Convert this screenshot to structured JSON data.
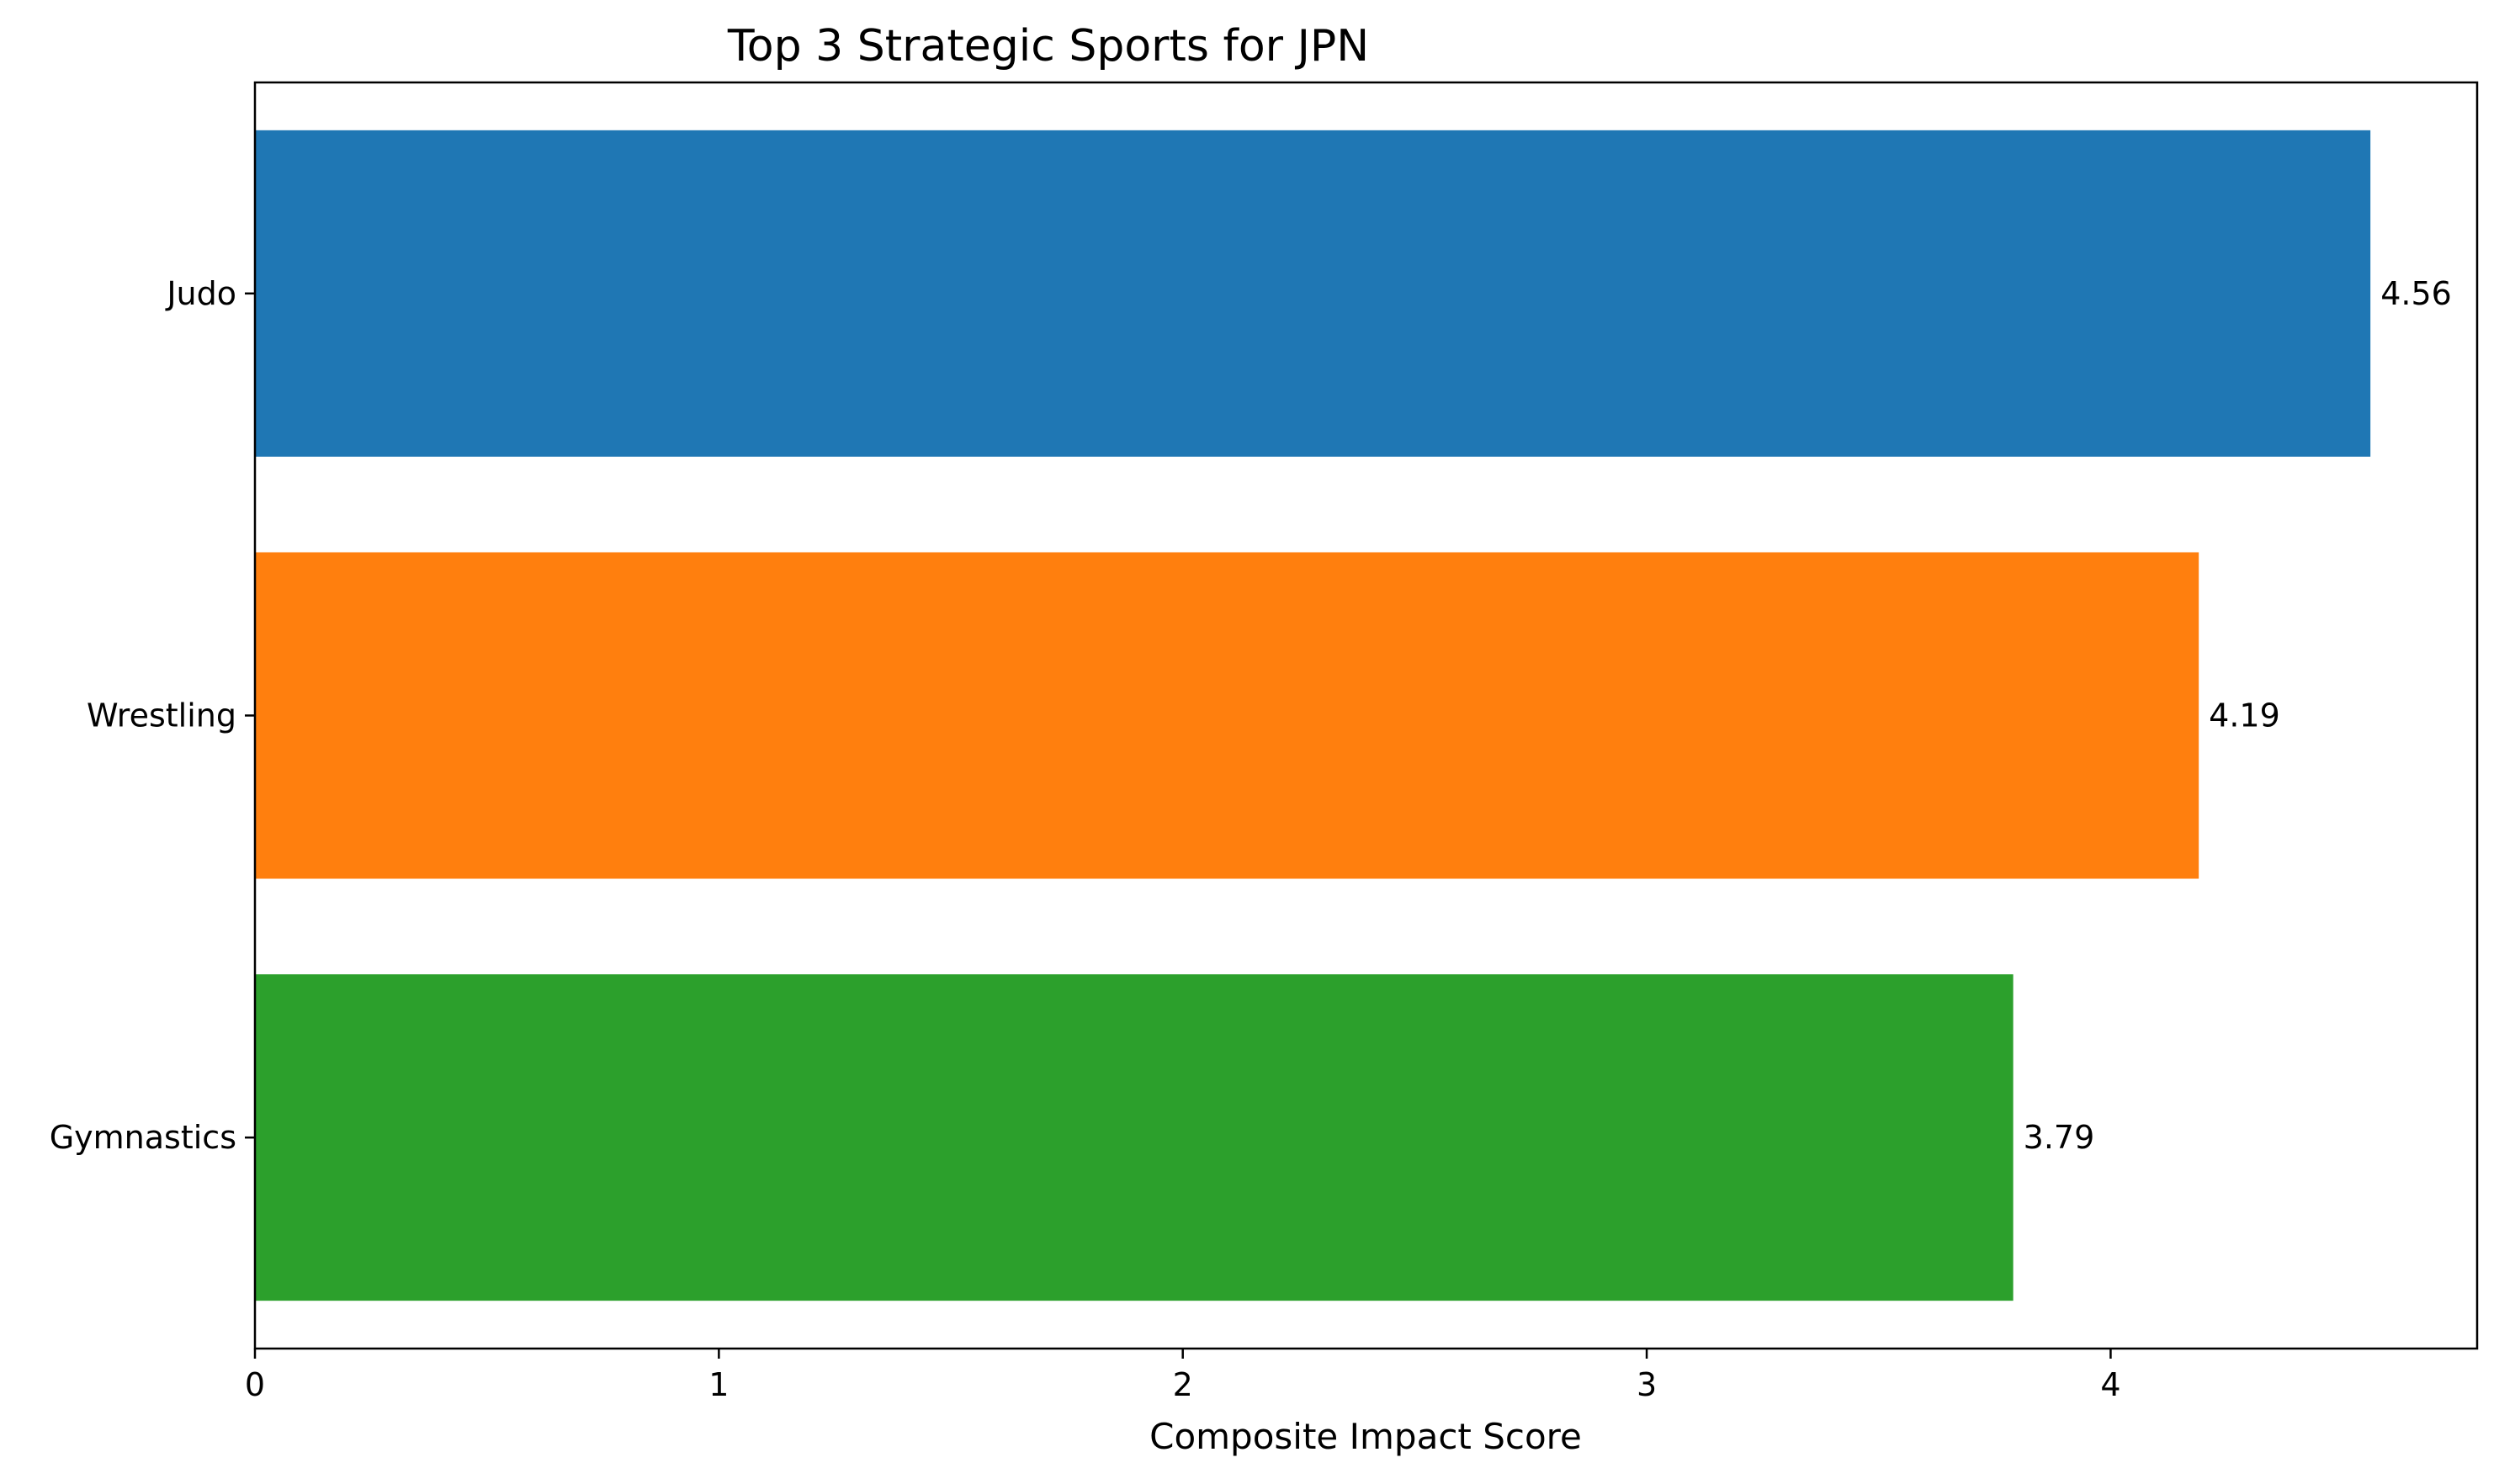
{
  "chart_data": {
    "type": "bar",
    "orientation": "horizontal",
    "title": "Top 3 Strategic Sports for JPN",
    "xlabel": "Composite Impact Score",
    "ylabel": "",
    "categories": [
      "Judo",
      "Wrestling",
      "Gymnastics"
    ],
    "values": [
      4.56,
      4.19,
      3.79
    ],
    "value_labels": [
      "4.56",
      "4.19",
      "3.79"
    ],
    "colors": [
      "#1f77b4",
      "#ff7f0e",
      "#2ca02c"
    ],
    "xlim": [
      0,
      4.79
    ],
    "xticks": [
      0,
      1,
      2,
      3,
      4
    ],
    "xtick_labels": [
      "0",
      "1",
      "2",
      "3",
      "4"
    ],
    "grid": false,
    "legend": "none"
  }
}
